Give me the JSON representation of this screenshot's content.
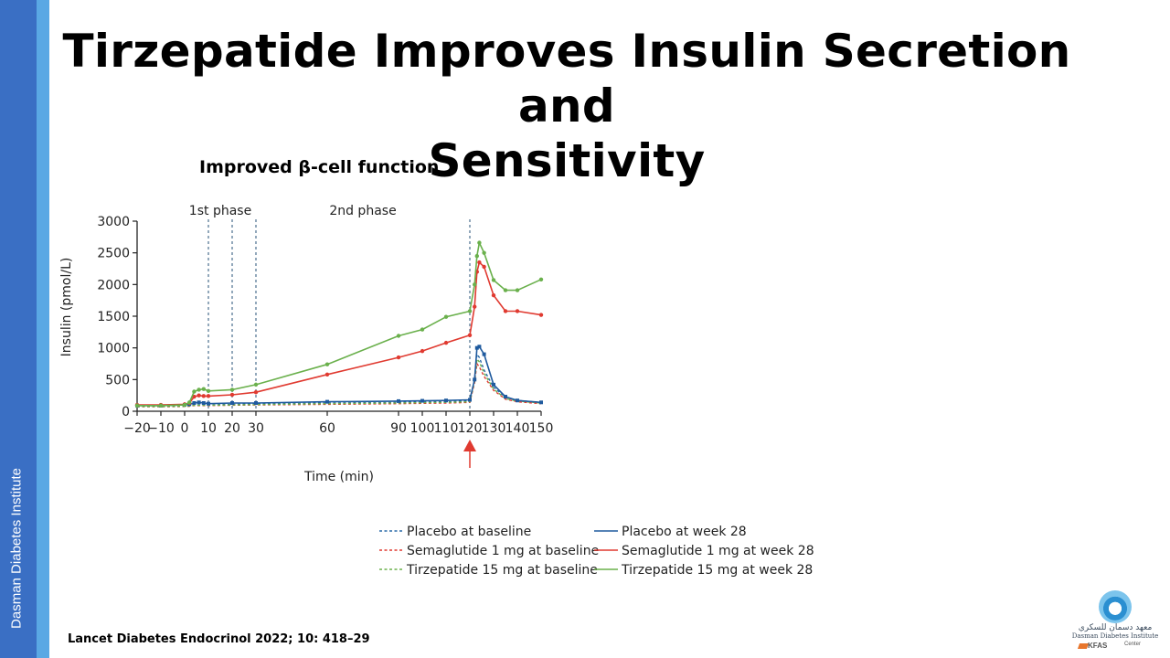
{
  "sidebar": {
    "label": "Dasman Diabetes Institute"
  },
  "slide": {
    "title_line1": "Tirzepatide Improves Insulin Secretion and",
    "title_line2": "Sensitivity",
    "subtitle": "Improved β-cell function",
    "citation": "Lancet Diabetes Endocrinol 2022; 10: 418–29"
  },
  "logo": {
    "arabic": "معهد دسمان للسكري",
    "english": "Dasman Diabetes Institute",
    "kfas": "KFAS",
    "center": "Center"
  },
  "colors": {
    "placebo": "#2a6aa8",
    "placebo_dark": "#1f5a9e",
    "semaglutide": "#e03a30",
    "tirzepatide": "#6ab04c",
    "arrow": "#e03a30"
  },
  "chart_data": {
    "type": "line",
    "title": "",
    "xlabel": "Time (min)",
    "ylabel": "Insulin (pmol/L)",
    "xlim": [
      -20,
      150
    ],
    "ylim": [
      0,
      3000
    ],
    "xticks": [
      -20,
      -10,
      0,
      10,
      20,
      30,
      60,
      90,
      100,
      110,
      120,
      130,
      140,
      150
    ],
    "yticks": [
      0,
      500,
      1000,
      1500,
      2000,
      2500,
      3000
    ],
    "phase_labels": [
      {
        "text": "1st phase",
        "x": 15
      },
      {
        "text": "2nd phase",
        "x": 75
      }
    ],
    "vlines": [
      10,
      20,
      30,
      120
    ],
    "arrow_x": 120,
    "legend_position": "bottom",
    "series": [
      {
        "name": "Placebo at baseline",
        "color": "#2a6aa8",
        "style": "dashed",
        "marker": "none",
        "x": [
          -20,
          -10,
          0,
          2,
          4,
          6,
          8,
          10,
          20,
          30,
          60,
          90,
          100,
          110,
          120,
          122,
          123,
          124,
          126,
          130,
          135,
          140,
          150
        ],
        "y": [
          80,
          80,
          85,
          90,
          100,
          100,
          100,
          100,
          110,
          115,
          130,
          140,
          145,
          150,
          160,
          500,
          900,
          850,
          650,
          380,
          220,
          170,
          140
        ]
      },
      {
        "name": "Semaglutide 1 mg at baseline",
        "color": "#e03a30",
        "style": "dashed",
        "marker": "none",
        "x": [
          -20,
          -10,
          0,
          2,
          4,
          6,
          8,
          10,
          20,
          30,
          60,
          90,
          100,
          110,
          120,
          122,
          123,
          124,
          126,
          130,
          135,
          140,
          150
        ],
        "y": [
          70,
          70,
          75,
          80,
          90,
          90,
          90,
          90,
          95,
          100,
          110,
          120,
          125,
          130,
          140,
          450,
          750,
          700,
          550,
          330,
          190,
          150,
          120
        ]
      },
      {
        "name": "Tirzepatide 15 mg at baseline",
        "color": "#6ab04c",
        "style": "dashed",
        "marker": "none",
        "x": [
          -20,
          -10,
          0,
          2,
          4,
          6,
          8,
          10,
          20,
          30,
          60,
          90,
          100,
          110,
          120,
          122,
          123,
          124,
          126,
          130,
          135,
          140,
          150
        ],
        "y": [
          75,
          75,
          80,
          85,
          95,
          95,
          95,
          95,
          100,
          105,
          120,
          130,
          135,
          140,
          150,
          480,
          820,
          780,
          600,
          350,
          200,
          160,
          130
        ]
      },
      {
        "name": "Placebo at week 28",
        "color": "#1f5a9e",
        "style": "solid",
        "marker": "square",
        "x": [
          -20,
          -10,
          0,
          2,
          4,
          6,
          8,
          10,
          20,
          30,
          60,
          90,
          100,
          110,
          120,
          122,
          123,
          124,
          126,
          130,
          135,
          140,
          150
        ],
        "y": [
          90,
          90,
          100,
          110,
          130,
          140,
          130,
          120,
          130,
          130,
          150,
          160,
          165,
          170,
          180,
          500,
          1000,
          1020,
          900,
          420,
          230,
          170,
          140
        ]
      },
      {
        "name": "Semaglutide 1 mg at week 28",
        "color": "#e03a30",
        "style": "solid",
        "marker": "dot",
        "x": [
          -20,
          -10,
          0,
          2,
          4,
          6,
          8,
          10,
          20,
          30,
          60,
          90,
          100,
          110,
          120,
          122,
          123,
          124,
          126,
          130,
          135,
          140,
          150
        ],
        "y": [
          100,
          100,
          110,
          130,
          230,
          250,
          240,
          240,
          260,
          300,
          580,
          850,
          950,
          1080,
          1200,
          1650,
          2200,
          2350,
          2280,
          1830,
          1580,
          1580,
          1520
        ]
      },
      {
        "name": "Tirzepatide 15 mg at week 28",
        "color": "#6ab04c",
        "style": "solid",
        "marker": "dot",
        "x": [
          -20,
          -10,
          0,
          2,
          4,
          6,
          8,
          10,
          20,
          30,
          60,
          90,
          100,
          110,
          120,
          122,
          123,
          124,
          126,
          130,
          135,
          140,
          150
        ],
        "y": [
          90,
          90,
          100,
          140,
          310,
          340,
          350,
          320,
          340,
          420,
          740,
          1190,
          1290,
          1490,
          1580,
          2000,
          2450,
          2660,
          2500,
          2070,
          1910,
          1910,
          2080
        ]
      }
    ]
  }
}
